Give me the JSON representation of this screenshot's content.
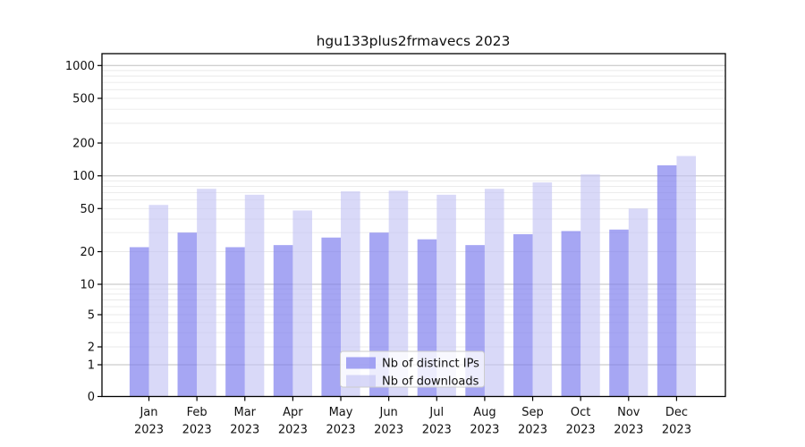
{
  "chart_data": {
    "type": "bar",
    "title": "hgu133plus2frmavecs 2023",
    "year_label": "2023",
    "categories": [
      "Jan",
      "Feb",
      "Mar",
      "Apr",
      "May",
      "Jun",
      "Jul",
      "Aug",
      "Sep",
      "Oct",
      "Nov",
      "Dec"
    ],
    "series": [
      {
        "name": "Nb of distinct IPs",
        "color": "rgba(122,122,237,0.67)",
        "values": [
          22,
          30,
          22,
          23,
          27,
          30,
          26,
          23,
          29,
          31,
          32,
          125
        ]
      },
      {
        "name": "Nb of downloads",
        "color": "rgba(193,193,243,0.62)",
        "values": [
          54,
          76,
          67,
          48,
          72,
          73,
          67,
          76,
          87,
          103,
          50,
          152
        ]
      }
    ],
    "yticks": [
      0,
      1,
      2,
      5,
      10,
      20,
      50,
      100,
      200,
      500,
      1000
    ],
    "ylim": [
      0,
      1300
    ],
    "yscale": "log-with-linear-zero",
    "grid": "on",
    "legend_position": "lower center",
    "colors": {
      "major_grid": "#bfbfbf",
      "minor_grid": "#e9e9e9",
      "spine": "#000000",
      "legend_border": "#cccccc",
      "legend_bg": "rgba(255,255,255,0.8)"
    }
  }
}
